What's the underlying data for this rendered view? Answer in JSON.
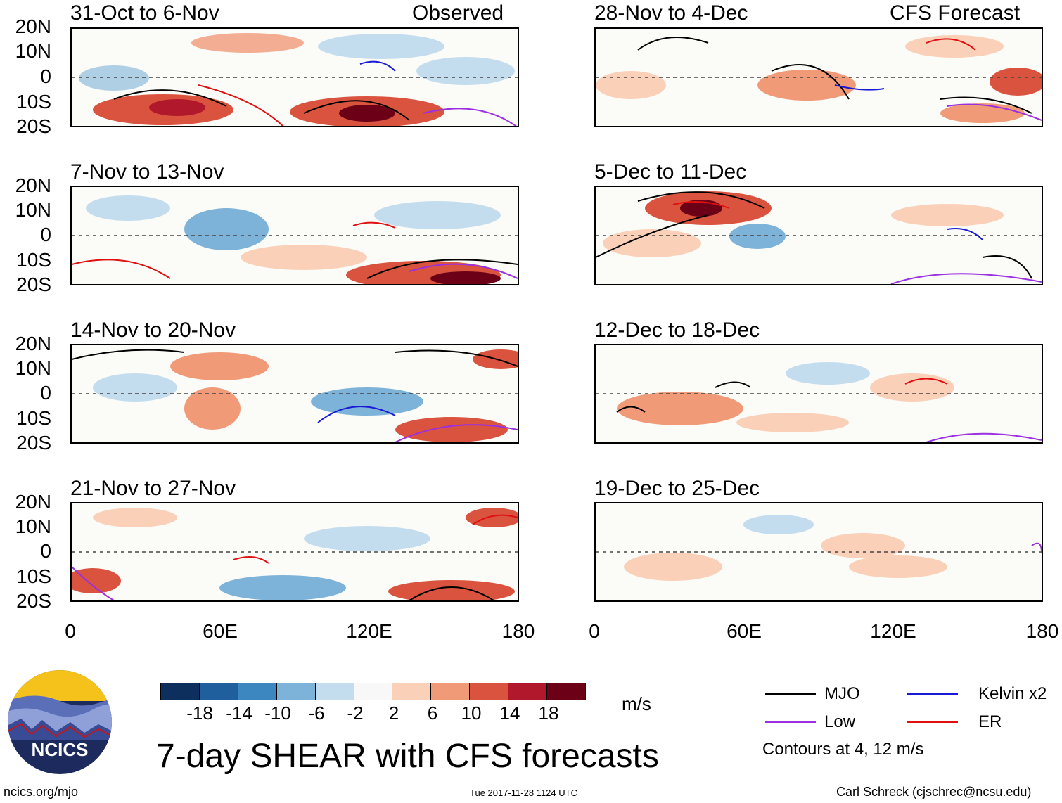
{
  "headers": {
    "left": "Observed",
    "right": "CFS Forecast"
  },
  "panels_left": [
    {
      "title": "31-Oct to 6-Nov"
    },
    {
      "title": "7-Nov to 13-Nov"
    },
    {
      "title": "14-Nov to 20-Nov"
    },
    {
      "title": "21-Nov to 27-Nov"
    }
  ],
  "panels_right": [
    {
      "title": "28-Nov to 4-Dec"
    },
    {
      "title": "5-Dec to 11-Dec"
    },
    {
      "title": "12-Dec to 18-Dec"
    },
    {
      "title": "19-Dec to 25-Dec"
    }
  ],
  "lat_labels": [
    "20N",
    "10N",
    "0",
    "10S",
    "20S"
  ],
  "lon_labels": [
    "0",
    "60E",
    "120E",
    "180"
  ],
  "colorbar": {
    "labels": [
      "-18",
      "-14",
      "-10",
      "-6",
      "-2",
      "2",
      "6",
      "10",
      "14",
      "18"
    ],
    "units": "m/s",
    "colors": [
      "#0d2f5e",
      "#1f5f9e",
      "#3d87c0",
      "#7db3d8",
      "#c4ddee",
      "#f8f8f8",
      "#fbd0b8",
      "#f19a78",
      "#d9533e",
      "#b2182b",
      "#6b0016"
    ]
  },
  "legend": {
    "items": [
      {
        "label": "MJO",
        "color": "#000000"
      },
      {
        "label": "Kelvin x2",
        "color": "#1a1ad6"
      },
      {
        "label": "Low",
        "color": "#9b30e0"
      },
      {
        "label": "ER",
        "color": "#e01010"
      }
    ],
    "note": "Contours at 4, 12 m/s"
  },
  "title": "7-day SHEAR with CFS forecasts",
  "logo_text": "NCICS",
  "footer": {
    "url": "ncics.org/mjo",
    "timestamp": "Tue 2017-11-28 1124 UTC",
    "author": "Carl Schreck (cjschrec@ncsu.edu)"
  }
}
